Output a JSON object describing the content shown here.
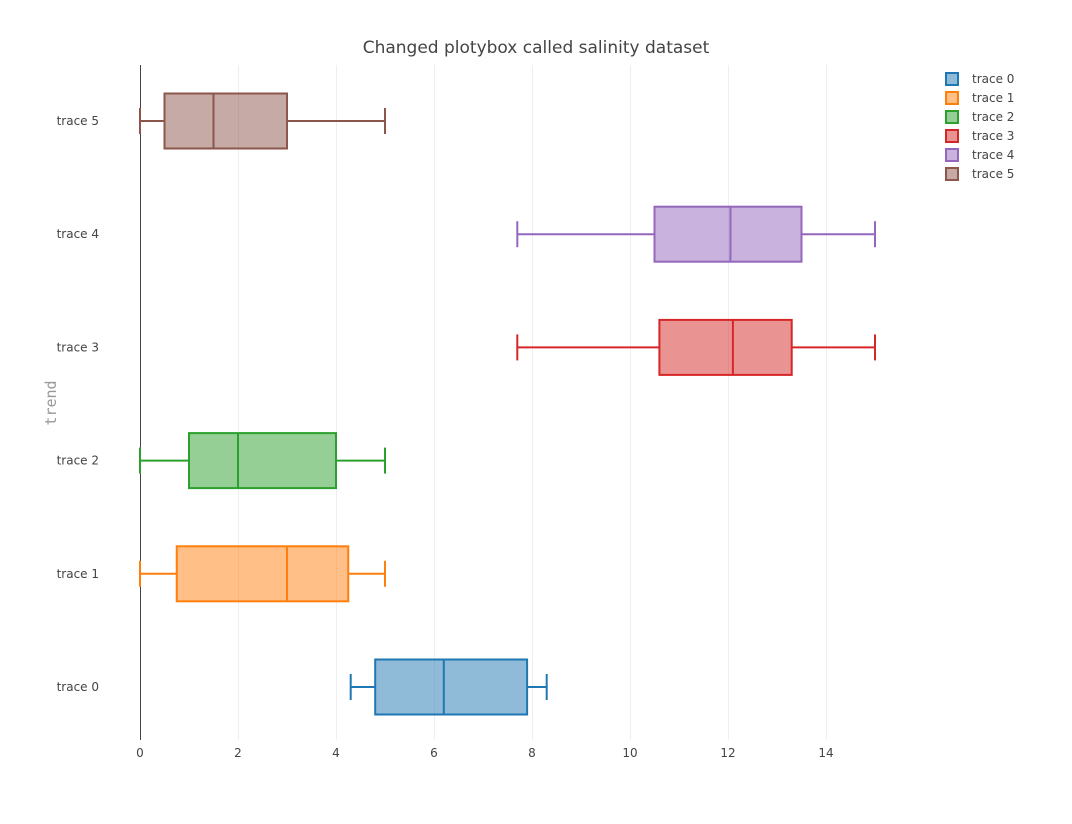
{
  "chart_data": {
    "type": "box",
    "orientation": "horizontal",
    "title": "Changed plotybox called salinity dataset",
    "xlabel": "",
    "ylabel": "trend",
    "xlim": [
      0,
      15
    ],
    "x_ticks": [
      0,
      2,
      4,
      6,
      8,
      10,
      12,
      14
    ],
    "grid": "vertical",
    "legend_position": "top-right",
    "series": [
      {
        "name": "trace 0",
        "color": "#1f77b4",
        "min": 4.3,
        "q1": 4.8,
        "median": 6.2,
        "q3": 7.9,
        "max": 8.3
      },
      {
        "name": "trace 1",
        "color": "#ff7f0e",
        "min": 0,
        "q1": 0.75,
        "median": 3,
        "q3": 4.25,
        "max": 5
      },
      {
        "name": "trace 2",
        "color": "#2ca02c",
        "min": 0,
        "q1": 1,
        "median": 2,
        "q3": 4,
        "max": 5
      },
      {
        "name": "trace 3",
        "color": "#d62728",
        "min": 7.7,
        "q1": 10.6,
        "median": 12.1,
        "q3": 13.3,
        "max": 15
      },
      {
        "name": "trace 4",
        "color": "#9467bd",
        "min": 7.7,
        "q1": 10.5,
        "median": 12.05,
        "q3": 13.5,
        "max": 15
      },
      {
        "name": "trace 5",
        "color": "#8c564b",
        "min": 0,
        "q1": 0.5,
        "median": 1.5,
        "q3": 3,
        "max": 5
      }
    ]
  }
}
